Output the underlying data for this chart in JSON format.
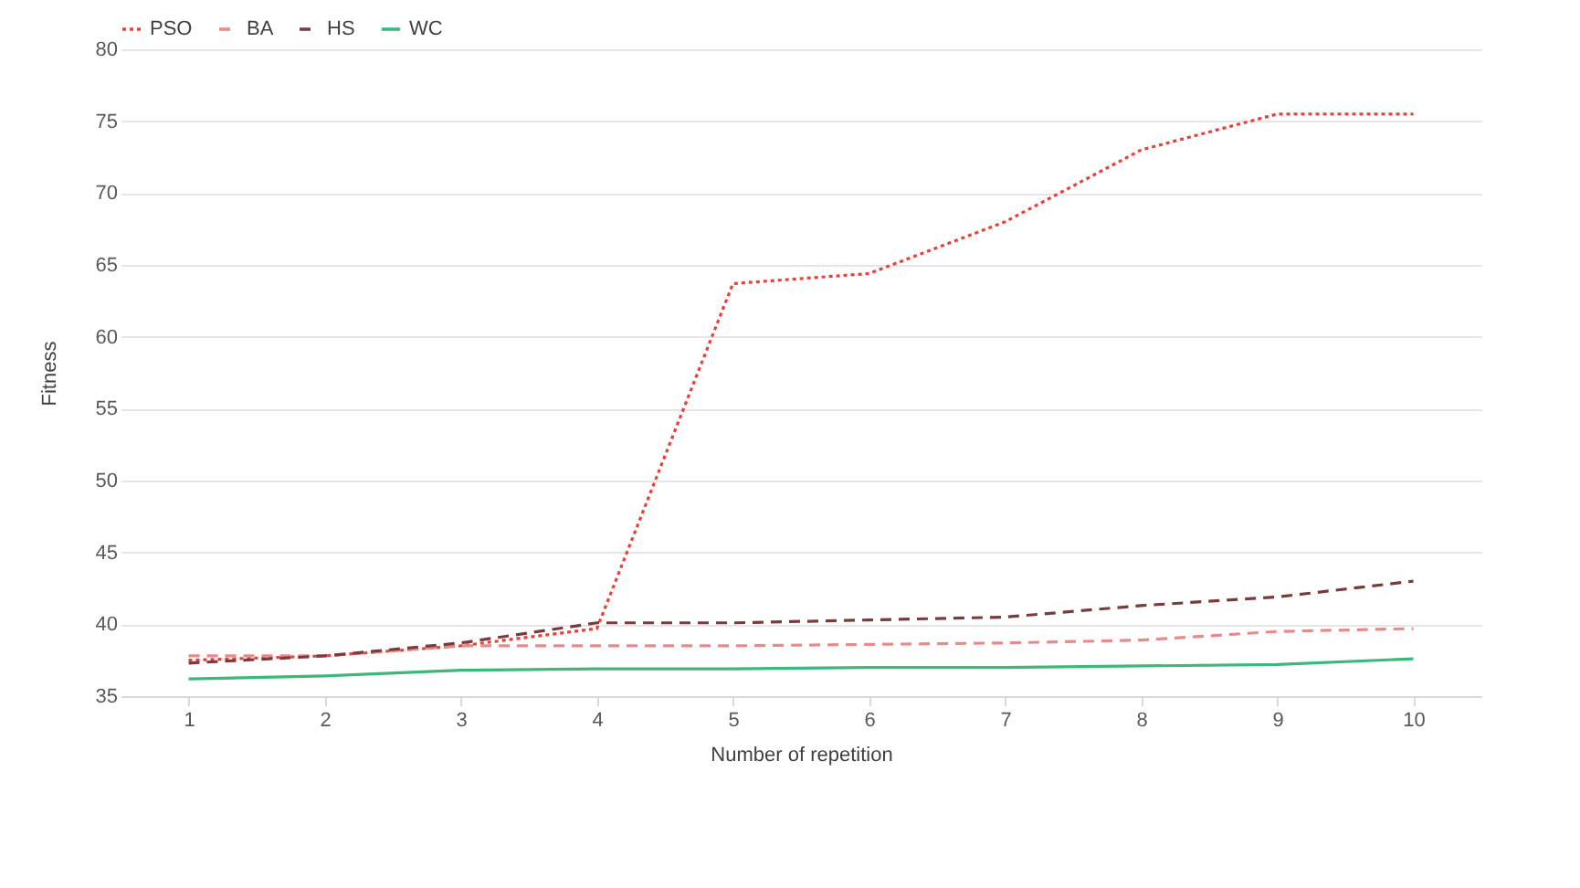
{
  "chart_data": {
    "type": "line",
    "xlabel": "Number of repetition",
    "ylabel": "Fitness",
    "categories": [
      "1",
      "2",
      "3",
      "4",
      "5",
      "6",
      "7",
      "8",
      "9",
      "10"
    ],
    "ylim": [
      35,
      80
    ],
    "yticks": [
      35,
      40,
      45,
      50,
      55,
      60,
      65,
      70,
      75,
      80
    ],
    "grid": "y",
    "legend": "top",
    "marker": "none",
    "series": [
      {
        "name": "PSO",
        "color": "#e8403a",
        "line_style": "dotted",
        "values": [
          37.5,
          37.8,
          38.5,
          39.7,
          63.7,
          64.4,
          68.0,
          73.0,
          75.5,
          75.5
        ]
      },
      {
        "name": "BA",
        "color": "#e88a8a",
        "line_style": "dashed",
        "values": [
          37.8,
          37.8,
          38.5,
          38.5,
          38.5,
          38.6,
          38.7,
          38.9,
          39.5,
          39.7
        ]
      },
      {
        "name": "HS",
        "color": "#7a3b3b",
        "line_style": "dashed",
        "values": [
          37.3,
          37.8,
          38.7,
          40.1,
          40.1,
          40.3,
          40.5,
          41.3,
          41.9,
          43.0
        ]
      },
      {
        "name": "WC",
        "color": "#3cb87a",
        "line_style": "solid",
        "values": [
          36.2,
          36.4,
          36.8,
          36.9,
          36.9,
          37.0,
          37.0,
          37.1,
          37.2,
          37.6
        ]
      }
    ]
  }
}
